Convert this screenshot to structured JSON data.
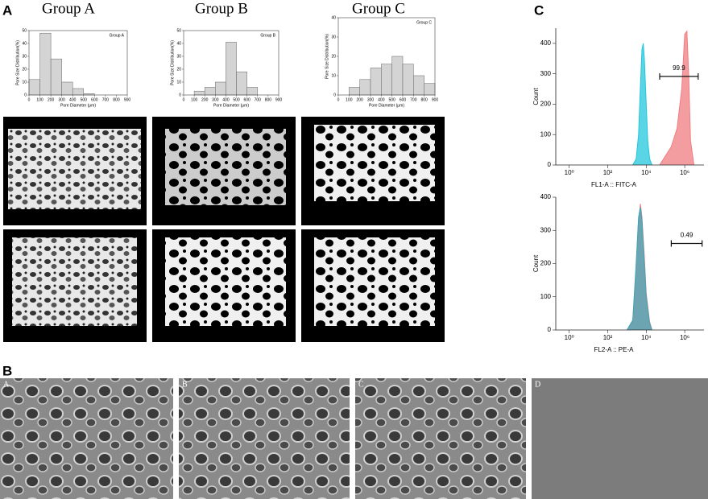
{
  "figure": {
    "panel_labels": [
      "A",
      "B",
      "C"
    ],
    "sem_labels": [
      "A",
      "B",
      "C",
      "D"
    ]
  },
  "chart_data": [
    {
      "type": "histogram",
      "title": "Group A",
      "xlabel": "Pore Diameter (μm)",
      "ylabel": "Pore Size Distribution(%)",
      "bins": [
        0,
        100,
        200,
        300,
        400,
        500,
        600,
        700,
        800,
        900
      ],
      "values": [
        12,
        48,
        28,
        10,
        5,
        1,
        0,
        0,
        0
      ],
      "color": "#d4d4d4",
      "xlim": [
        0,
        900
      ],
      "ylim": [
        0,
        50
      ],
      "xticks": [
        0,
        100,
        200,
        300,
        400,
        500,
        600,
        700,
        800,
        900
      ],
      "yticks": [
        0,
        10,
        20,
        30,
        40,
        50
      ]
    },
    {
      "type": "histogram",
      "title": "Group B",
      "xlabel": "Pore Diameter (μm)",
      "ylabel": "Pore Size Distribution(%)",
      "bins": [
        0,
        100,
        200,
        300,
        400,
        500,
        600,
        700,
        800,
        900
      ],
      "values": [
        0,
        3,
        6,
        10,
        41,
        18,
        6,
        0,
        0
      ],
      "color": "#d4d4d4",
      "xlim": [
        0,
        900
      ],
      "ylim": [
        0,
        50
      ],
      "xticks": [
        0,
        100,
        200,
        300,
        400,
        500,
        600,
        700,
        800,
        900
      ],
      "yticks": [
        0,
        10,
        20,
        30,
        40,
        50
      ]
    },
    {
      "type": "histogram",
      "title": "Group C",
      "xlabel": "Pore Diameter (μm)",
      "ylabel": "Pore Size Distribution(%)",
      "bins": [
        0,
        100,
        200,
        300,
        400,
        500,
        600,
        700,
        800,
        900
      ],
      "values": [
        0,
        4,
        8,
        14,
        16,
        20,
        16,
        10,
        6
      ],
      "color": "#d4d4d4",
      "xlim": [
        0,
        900
      ],
      "ylim": [
        0,
        40
      ],
      "xticks": [
        0,
        100,
        200,
        300,
        400,
        500,
        600,
        700,
        800,
        900
      ],
      "yticks": [
        0,
        10,
        20,
        30,
        40
      ]
    },
    {
      "type": "area",
      "xlabel": "FL1-A :: FITC-A",
      "ylabel": "Count",
      "log_x": true,
      "xlim": [
        0.2,
        10000000
      ],
      "ylim": [
        0,
        450
      ],
      "xticks": [
        {
          "value": 1,
          "label": "10⁰"
        },
        {
          "value": 100,
          "label": "10²"
        },
        {
          "value": 10000,
          "label": "10⁴"
        },
        {
          "value": 1000000,
          "label": "10⁶"
        }
      ],
      "yticks": [
        0,
        100,
        200,
        300,
        400
      ],
      "series": [
        {
          "color": "#22c7dc",
          "x": [
            2000,
            3000,
            4000,
            5000,
            6000,
            7000,
            8000,
            10000,
            12000,
            15000,
            20000
          ],
          "values": [
            0,
            20,
            100,
            260,
            380,
            400,
            350,
            200,
            80,
            20,
            0
          ]
        },
        {
          "color": "#f07c80",
          "x": [
            50000,
            100000,
            200000,
            400000,
            700000,
            1000000,
            1300000,
            1600000,
            2000000,
            3000000
          ],
          "values": [
            0,
            30,
            60,
            120,
            250,
            430,
            440,
            300,
            80,
            0
          ]
        }
      ],
      "gate": {
        "range": [
          50000,
          5000000
        ],
        "label": "99.9"
      }
    },
    {
      "type": "area",
      "xlabel": "FL2-A :: PE-A",
      "ylabel": "Count",
      "log_x": true,
      "xlim": [
        0.2,
        10000000
      ],
      "ylim": [
        0,
        400
      ],
      "xticks": [
        {
          "value": 1,
          "label": "10⁰"
        },
        {
          "value": 100,
          "label": "10²"
        },
        {
          "value": 10000,
          "label": "10⁴"
        },
        {
          "value": 1000000,
          "label": "10⁶"
        }
      ],
      "yticks": [
        0,
        100,
        200,
        300,
        400
      ],
      "series": [
        {
          "color": "#f07c80",
          "x": [
            1000,
            2000,
            3000,
            4000,
            5000,
            6000,
            8000,
            10000,
            15000,
            20000
          ],
          "values": [
            0,
            25,
            190,
            330,
            380,
            340,
            220,
            110,
            25,
            0
          ]
        },
        {
          "color": "#3fa7b8",
          "x": [
            1000,
            2000,
            3000,
            4000,
            5000,
            6000,
            8000,
            10000,
            15000,
            20000
          ],
          "values": [
            0,
            30,
            200,
            340,
            370,
            330,
            200,
            100,
            20,
            0
          ]
        }
      ],
      "gate": {
        "range": [
          200000,
          8000000
        ],
        "label": "0.49"
      }
    }
  ]
}
